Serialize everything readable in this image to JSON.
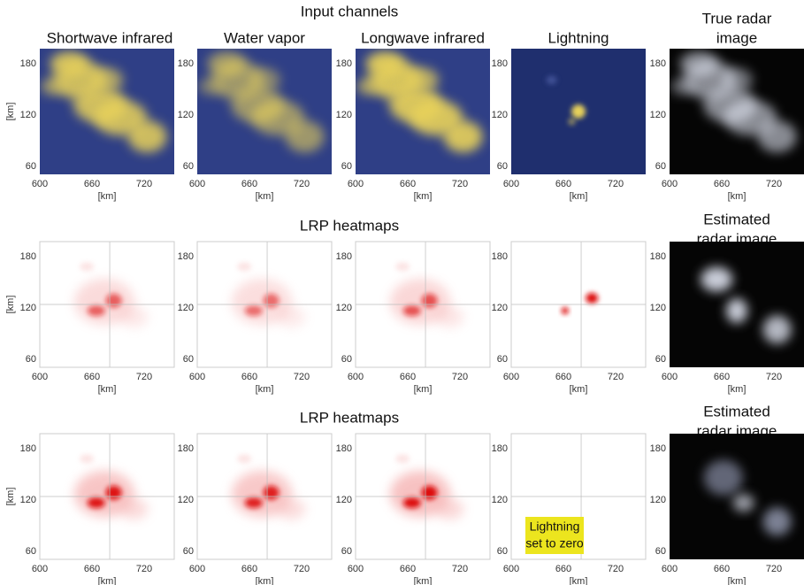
{
  "rows": [
    {
      "title": "Input channels",
      "panels": [
        {
          "title": [
            "Shortwave infrared"
          ]
        },
        {
          "title": [
            "Water vapor"
          ]
        },
        {
          "title": [
            "Longwave infrared"
          ]
        },
        {
          "title": [
            "Lightning"
          ]
        },
        {
          "title": [
            "True radar",
            "image"
          ]
        }
      ]
    },
    {
      "title": "LRP heatmaps",
      "panels": [
        {
          "title": []
        },
        {
          "title": []
        },
        {
          "title": []
        },
        {
          "title": []
        },
        {
          "title": [
            "Estimated",
            "radar image"
          ]
        }
      ]
    },
    {
      "title": "LRP heatmaps",
      "panels": [
        {
          "title": []
        },
        {
          "title": []
        },
        {
          "title": []
        },
        {
          "title": []
        },
        {
          "title": [
            "Estimated",
            "radar image"
          ]
        }
      ]
    }
  ],
  "axes": {
    "xticks": [
      600,
      660,
      720
    ],
    "yticks": [
      180,
      120,
      60
    ],
    "xlabel": "[km]",
    "ylabel": "[km]"
  },
  "annotation": [
    "Lightning",
    "set to zero"
  ]
}
